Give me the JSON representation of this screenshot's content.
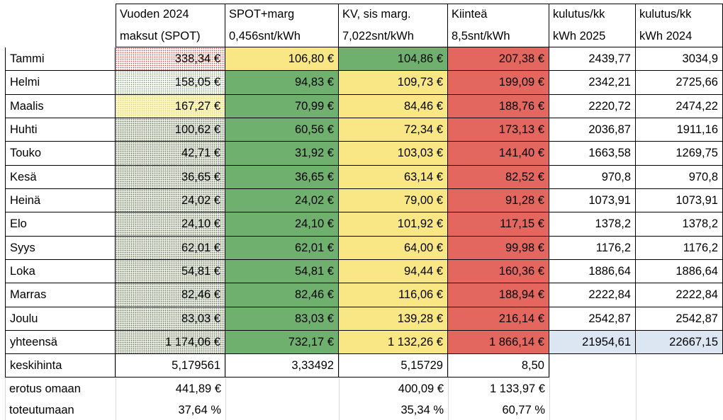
{
  "headers": [
    {
      "line1": "Vuoden 2024",
      "line2": "maksut (SPOT)"
    },
    {
      "line1": "SPOT+marg",
      "line2": "0,456snt/kWh"
    },
    {
      "line1": "KV, sis marg.",
      "line2": "7,022snt/kWh"
    },
    {
      "line1": "Kiinteä",
      "line2": "8,5snt/kWh"
    },
    {
      "line1": "kulutus/kk",
      "line2": "kWh 2025"
    },
    {
      "line1": "kulutus/kk",
      "line2": "kWh 2024"
    }
  ],
  "rows": [
    {
      "month": "Tammi",
      "spot2024": "338,34 €",
      "spot_marg": "106,80 €",
      "kv": "104,86 €",
      "kiintea": "207,38 €",
      "kwh2025": "2439,77",
      "kwh2024": "3034,9",
      "colors": [
        "dotred",
        "yellow",
        "green",
        "red"
      ]
    },
    {
      "month": "Helmi",
      "spot2024": "158,05 €",
      "spot_marg": "94,83 €",
      "kv": "109,73 €",
      "kiintea": "199,09 €",
      "kwh2025": "2342,21",
      "kwh2024": "2725,66",
      "colors": [
        "dotgreen",
        "green",
        "yellow",
        "red"
      ]
    },
    {
      "month": "Maalis",
      "spot2024": "167,27 €",
      "spot_marg": "70,99 €",
      "kv": "84,46 €",
      "kiintea": "188,76 €",
      "kwh2025": "2220,72",
      "kwh2024": "2474,22",
      "colors": [
        "dotyellow",
        "green",
        "yellow",
        "red"
      ]
    },
    {
      "month": "Huhti",
      "spot2024": "100,62 €",
      "spot_marg": "60,56 €",
      "kv": "72,34 €",
      "kiintea": "173,13 €",
      "kwh2025": "2036,87",
      "kwh2024": "1911,16",
      "colors": [
        "dotgray",
        "green",
        "yellow",
        "red"
      ]
    },
    {
      "month": "Touko",
      "spot2024": "42,71 €",
      "spot_marg": "31,92 €",
      "kv": "103,03 €",
      "kiintea": "141,40 €",
      "kwh2025": "1663,58",
      "kwh2024": "1269,75",
      "colors": [
        "dotgray",
        "green",
        "yellow",
        "red"
      ]
    },
    {
      "month": "Kesä",
      "spot2024": "36,65 €",
      "spot_marg": "36,65 €",
      "kv": "63,14 €",
      "kiintea": "82,52 €",
      "kwh2025": "970,8",
      "kwh2024": "970,8",
      "colors": [
        "dotgray",
        "green",
        "yellow",
        "red"
      ]
    },
    {
      "month": "Heinä",
      "spot2024": "24,02 €",
      "spot_marg": "24,02 €",
      "kv": "79,00 €",
      "kiintea": "91,28 €",
      "kwh2025": "1073,91",
      "kwh2024": "1073,91",
      "colors": [
        "dotgray",
        "green",
        "yellow",
        "red"
      ]
    },
    {
      "month": "Elo",
      "spot2024": "24,10 €",
      "spot_marg": "24,10 €",
      "kv": "101,92 €",
      "kiintea": "117,15 €",
      "kwh2025": "1378,2",
      "kwh2024": "1378,2",
      "colors": [
        "dotgray",
        "green",
        "yellow",
        "red"
      ]
    },
    {
      "month": "Syys",
      "spot2024": "62,01 €",
      "spot_marg": "62,01 €",
      "kv": "64,00 €",
      "kiintea": "99,98 €",
      "kwh2025": "1176,2",
      "kwh2024": "1176,2",
      "colors": [
        "dotgray",
        "green",
        "yellow",
        "red"
      ]
    },
    {
      "month": "Loka",
      "spot2024": "54,81 €",
      "spot_marg": "54,81 €",
      "kv": "94,44 €",
      "kiintea": "160,36 €",
      "kwh2025": "1886,64",
      "kwh2024": "1886,64",
      "colors": [
        "dotgray",
        "green",
        "yellow",
        "red"
      ]
    },
    {
      "month": "Marras",
      "spot2024": "82,46 €",
      "spot_marg": "82,46 €",
      "kv": "116,06 €",
      "kiintea": "188,94 €",
      "kwh2025": "2222,84",
      "kwh2024": "2222,84",
      "colors": [
        "dotgray",
        "green",
        "yellow",
        "red"
      ]
    },
    {
      "month": "Joulu",
      "spot2024": "83,03 €",
      "spot_marg": "83,03 €",
      "kv": "139,28 €",
      "kiintea": "216,14 €",
      "kwh2025": "2542,87",
      "kwh2024": "2542,87",
      "colors": [
        "dotgray",
        "green",
        "yellow",
        "red"
      ]
    }
  ],
  "total": {
    "label": "yhteensä",
    "spot2024": "1 174,06 €",
    "spot_marg": "732,17 €",
    "kv": "1 132,26 €",
    "kiintea": "1 866,14 €",
    "kwh2025": "21954,61",
    "kwh2024": "22667,15"
  },
  "avg": {
    "label": "keskihinta",
    "spot2024": "5,179561",
    "spot_marg": "3,33492",
    "kv": "5,15729",
    "kiintea": "8,50"
  },
  "diff": {
    "label": "erotus omaan",
    "spot2024": "441,89 €",
    "kv": "400,09 €",
    "kiintea": "1 133,97  €"
  },
  "ratio": {
    "label": "toteutumaan",
    "spot2024": "37,64 %",
    "kv": "35,34 %",
    "kiintea": "60,77 %"
  },
  "colors": {
    "green": "#6fb06f",
    "yellow": "#f9e785",
    "red": "#e3675f",
    "blue": "#dce6f2"
  }
}
